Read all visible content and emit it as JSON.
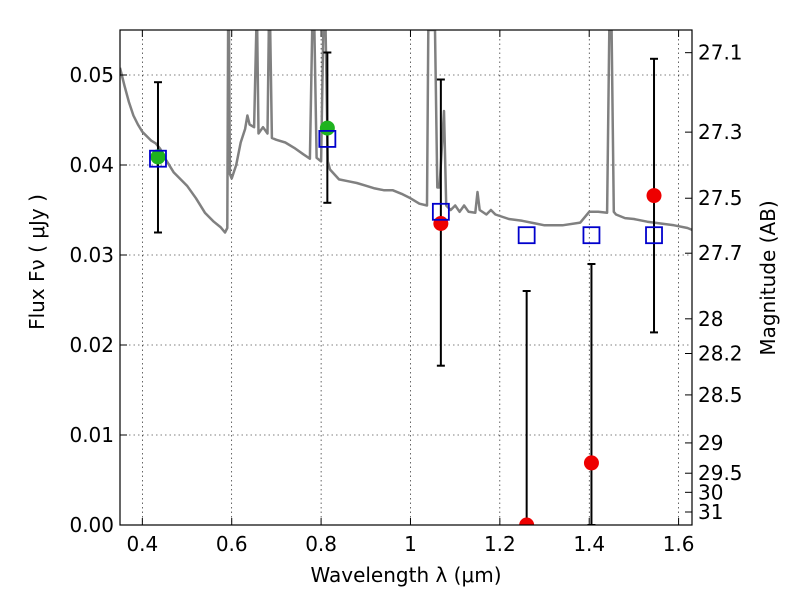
{
  "chart_data": {
    "type": "scatter",
    "xlabel": "Wavelength  λ (μm)",
    "ylabel": "Flux  Fν  ( μJy )",
    "ylabel_right": "Magnitude (AB)",
    "xlim": [
      0.35,
      1.63
    ],
    "ylim": [
      0.0,
      0.055
    ],
    "grid": true,
    "x_ticks": [
      {
        "value": 0.4,
        "label": "0.4"
      },
      {
        "value": 0.6,
        "label": "0.6"
      },
      {
        "value": 0.8,
        "label": "0.8"
      },
      {
        "value": 1.0,
        "label": "1"
      },
      {
        "value": 1.2,
        "label": "1.2"
      },
      {
        "value": 1.4,
        "label": "1.4"
      },
      {
        "value": 1.6,
        "label": "1.6"
      }
    ],
    "y_ticks": [
      {
        "value": 0.0,
        "label": "0.00"
      },
      {
        "value": 0.01,
        "label": "0.01"
      },
      {
        "value": 0.02,
        "label": "0.02"
      },
      {
        "value": 0.03,
        "label": "0.03"
      },
      {
        "value": 0.04,
        "label": "0.04"
      },
      {
        "value": 0.05,
        "label": "0.05"
      }
    ],
    "right_ticks": [
      {
        "value": 27.1,
        "label": "27.1"
      },
      {
        "value": 27.3,
        "label": "27.3"
      },
      {
        "value": 27.5,
        "label": "27.5"
      },
      {
        "value": 27.7,
        "label": "27.7"
      },
      {
        "value": 28.0,
        "label": "28"
      },
      {
        "value": 28.2,
        "label": "28.2"
      },
      {
        "value": 28.5,
        "label": "28.5"
      },
      {
        "value": 29.0,
        "label": "29"
      },
      {
        "value": 29.5,
        "label": "29.5"
      },
      {
        "value": 30.0,
        "label": "30"
      },
      {
        "value": 31.0,
        "label": "31"
      }
    ],
    "colors": {
      "template": "#808080",
      "green_points": "#1fb31f",
      "red_points": "#ee0000",
      "model_boxes": "#0000cc",
      "error_bars": "#000000"
    },
    "series": [
      {
        "type": "line",
        "points": [
          [
            0.35,
            0.0508
          ],
          [
            0.36,
            0.0488
          ],
          [
            0.37,
            0.047
          ],
          [
            0.38,
            0.0455
          ],
          [
            0.39,
            0.0445
          ],
          [
            0.4,
            0.0437
          ],
          [
            0.41,
            0.0432
          ],
          [
            0.42,
            0.0427
          ],
          [
            0.43,
            0.0424
          ],
          [
            0.44,
            0.0418
          ],
          [
            0.45,
            0.0408
          ],
          [
            0.47,
            0.0392
          ],
          [
            0.5,
            0.0377
          ],
          [
            0.52,
            0.0363
          ],
          [
            0.54,
            0.0347
          ],
          [
            0.56,
            0.0337
          ],
          [
            0.575,
            0.0331
          ],
          [
            0.585,
            0.0325
          ],
          [
            0.59,
            0.033
          ],
          [
            0.592,
            0.055
          ],
          [
            0.594,
            0.055
          ],
          [
            0.596,
            0.039
          ],
          [
            0.6,
            0.0385
          ],
          [
            0.61,
            0.04
          ],
          [
            0.62,
            0.0425
          ],
          [
            0.63,
            0.044
          ],
          [
            0.635,
            0.0455
          ],
          [
            0.64,
            0.0445
          ],
          [
            0.65,
            0.0442
          ],
          [
            0.655,
            0.055
          ],
          [
            0.657,
            0.055
          ],
          [
            0.66,
            0.0435
          ],
          [
            0.67,
            0.0442
          ],
          [
            0.68,
            0.0435
          ],
          [
            0.683,
            0.055
          ],
          [
            0.686,
            0.055
          ],
          [
            0.69,
            0.043
          ],
          [
            0.7,
            0.0428
          ],
          [
            0.72,
            0.0425
          ],
          [
            0.74,
            0.0419
          ],
          [
            0.76,
            0.0412
          ],
          [
            0.775,
            0.0407
          ],
          [
            0.78,
            0.055
          ],
          [
            0.785,
            0.055
          ],
          [
            0.79,
            0.0408
          ],
          [
            0.8,
            0.0404
          ],
          [
            0.805,
            0.055
          ],
          [
            0.81,
            0.055
          ],
          [
            0.815,
            0.0404
          ],
          [
            0.82,
            0.0395
          ],
          [
            0.84,
            0.0384
          ],
          [
            0.86,
            0.0382
          ],
          [
            0.88,
            0.038
          ],
          [
            0.9,
            0.0377
          ],
          [
            0.92,
            0.0374
          ],
          [
            0.94,
            0.0372
          ],
          [
            0.96,
            0.0372
          ],
          [
            0.98,
            0.0368
          ],
          [
            1.0,
            0.0363
          ],
          [
            1.02,
            0.0357
          ],
          [
            1.037,
            0.0355
          ],
          [
            1.04,
            0.055
          ],
          [
            1.055,
            0.055
          ],
          [
            1.06,
            0.0375
          ],
          [
            1.065,
            0.0375
          ],
          [
            1.075,
            0.046
          ],
          [
            1.08,
            0.0355
          ],
          [
            1.09,
            0.035
          ],
          [
            1.1,
            0.0355
          ],
          [
            1.11,
            0.0348
          ],
          [
            1.12,
            0.0355
          ],
          [
            1.13,
            0.0348
          ],
          [
            1.145,
            0.0347
          ],
          [
            1.15,
            0.037
          ],
          [
            1.155,
            0.035
          ],
          [
            1.17,
            0.0345
          ],
          [
            1.18,
            0.035
          ],
          [
            1.19,
            0.0345
          ],
          [
            1.22,
            0.034
          ],
          [
            1.25,
            0.0338
          ],
          [
            1.28,
            0.0335
          ],
          [
            1.3,
            0.0333
          ],
          [
            1.34,
            0.0333
          ],
          [
            1.38,
            0.0336
          ],
          [
            1.4,
            0.0348
          ],
          [
            1.42,
            0.0348
          ],
          [
            1.44,
            0.0347
          ],
          [
            1.445,
            0.055
          ],
          [
            1.45,
            0.055
          ],
          [
            1.455,
            0.0348
          ],
          [
            1.46,
            0.0345
          ],
          [
            1.48,
            0.0341
          ],
          [
            1.5,
            0.034
          ],
          [
            1.53,
            0.0337
          ],
          [
            1.56,
            0.0335
          ],
          [
            1.59,
            0.0333
          ],
          [
            1.62,
            0.033
          ],
          [
            1.63,
            0.0328
          ]
        ]
      },
      {
        "type": "scatter",
        "points": [
          {
            "x": 0.435,
            "y": 0.0409
          },
          {
            "x": 0.814,
            "y": 0.0441
          }
        ]
      },
      {
        "type": "scatter",
        "points": [
          {
            "x": 1.068,
            "y": 0.0335
          },
          {
            "x": 1.26,
            "y": 0.0
          },
          {
            "x": 1.405,
            "y": 0.0069
          },
          {
            "x": 1.545,
            "y": 0.0366
          }
        ]
      },
      {
        "type": "scatter",
        "points": [
          {
            "x": 0.435,
            "y": 0.0407
          },
          {
            "x": 0.814,
            "y": 0.0429
          },
          {
            "x": 1.068,
            "y": 0.0348
          },
          {
            "x": 1.26,
            "y": 0.0322
          },
          {
            "x": 1.405,
            "y": 0.0322
          },
          {
            "x": 1.545,
            "y": 0.0322
          }
        ]
      },
      {
        "type": "errorbar",
        "points": [
          {
            "x": 0.435,
            "low": 0.0325,
            "high": 0.0492
          },
          {
            "x": 0.814,
            "low": 0.0358,
            "high": 0.0525
          },
          {
            "x": 1.068,
            "low": 0.0177,
            "high": 0.0495
          },
          {
            "x": 1.26,
            "low": 0.0,
            "high": 0.026
          },
          {
            "x": 1.405,
            "low": 0.0,
            "high": 0.029
          },
          {
            "x": 1.545,
            "low": 0.0214,
            "high": 0.0518
          }
        ]
      }
    ]
  }
}
